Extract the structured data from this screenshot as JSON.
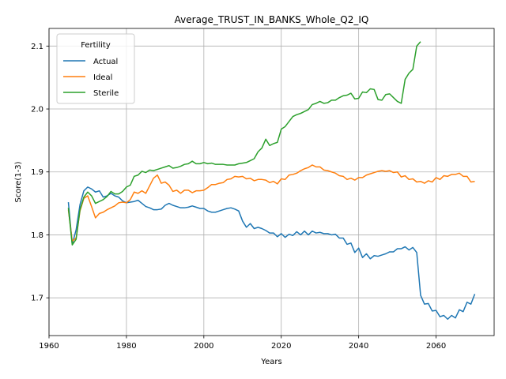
{
  "chart_data": {
    "type": "line",
    "title": "Average_TRUST_IN_BANKS_Whole_Q2_IQ",
    "xlabel": "Years",
    "ylabel": "Score(1-3)",
    "xlim": [
      1960,
      2075
    ],
    "ylim": [
      1.64,
      2.128
    ],
    "x_ticks": [
      1960,
      1980,
      2000,
      2020,
      2040,
      2060
    ],
    "y_ticks": [
      1.7,
      1.8,
      1.9,
      2.0,
      2.1
    ],
    "grid": true,
    "legend": {
      "title": "Fertility",
      "position": "top-left"
    },
    "series": [
      {
        "name": "Actual",
        "color": "#1f77b4",
        "points": [
          [
            1965,
            1.852
          ],
          [
            1966,
            1.785
          ],
          [
            1967,
            1.808
          ],
          [
            1968,
            1.848
          ],
          [
            1969,
            1.87
          ],
          [
            1970,
            1.876
          ],
          [
            1971,
            1.873
          ],
          [
            1972,
            1.868
          ],
          [
            1973,
            1.87
          ],
          [
            1974,
            1.86
          ],
          [
            1975,
            1.862
          ],
          [
            1976,
            1.866
          ],
          [
            1977,
            1.862
          ],
          [
            1978,
            1.86
          ],
          [
            1979,
            1.854
          ],
          [
            1980,
            1.851
          ],
          [
            1981,
            1.852
          ],
          [
            1982,
            1.853
          ],
          [
            1983,
            1.855
          ],
          [
            1984,
            1.85
          ],
          [
            1985,
            1.845
          ],
          [
            1986,
            1.843
          ],
          [
            1987,
            1.84
          ],
          [
            1988,
            1.84
          ],
          [
            1989,
            1.841
          ],
          [
            1990,
            1.847
          ],
          [
            1991,
            1.85
          ],
          [
            1992,
            1.847
          ],
          [
            1993,
            1.845
          ],
          [
            1994,
            1.843
          ],
          [
            1995,
            1.843
          ],
          [
            1996,
            1.844
          ],
          [
            1997,
            1.846
          ],
          [
            1998,
            1.844
          ],
          [
            1999,
            1.842
          ],
          [
            2000,
            1.842
          ],
          [
            2001,
            1.838
          ],
          [
            2002,
            1.836
          ],
          [
            2003,
            1.836
          ],
          [
            2004,
            1.838
          ],
          [
            2005,
            1.84
          ],
          [
            2006,
            1.842
          ],
          [
            2007,
            1.843
          ],
          [
            2008,
            1.841
          ],
          [
            2009,
            1.838
          ],
          [
            2010,
            1.822
          ],
          [
            2011,
            1.812
          ],
          [
            2012,
            1.818
          ],
          [
            2013,
            1.81
          ],
          [
            2014,
            1.812
          ],
          [
            2015,
            1.81
          ],
          [
            2016,
            1.807
          ],
          [
            2017,
            1.803
          ],
          [
            2018,
            1.803
          ],
          [
            2019,
            1.797
          ],
          [
            2020,
            1.802
          ],
          [
            2021,
            1.796
          ],
          [
            2022,
            1.801
          ],
          [
            2023,
            1.799
          ],
          [
            2024,
            1.805
          ],
          [
            2025,
            1.8
          ],
          [
            2026,
            1.806
          ],
          [
            2027,
            1.8
          ],
          [
            2028,
            1.806
          ],
          [
            2029,
            1.803
          ],
          [
            2030,
            1.804
          ],
          [
            2031,
            1.802
          ],
          [
            2032,
            1.802
          ],
          [
            2033,
            1.8
          ],
          [
            2034,
            1.801
          ],
          [
            2035,
            1.795
          ],
          [
            2036,
            1.795
          ],
          [
            2037,
            1.785
          ],
          [
            2038,
            1.787
          ],
          [
            2039,
            1.772
          ],
          [
            2040,
            1.779
          ],
          [
            2041,
            1.764
          ],
          [
            2042,
            1.77
          ],
          [
            2043,
            1.762
          ],
          [
            2044,
            1.767
          ],
          [
            2045,
            1.766
          ],
          [
            2046,
            1.768
          ],
          [
            2047,
            1.77
          ],
          [
            2048,
            1.773
          ],
          [
            2049,
            1.773
          ],
          [
            2050,
            1.778
          ],
          [
            2051,
            1.778
          ],
          [
            2052,
            1.781
          ],
          [
            2053,
            1.776
          ],
          [
            2054,
            1.78
          ],
          [
            2055,
            1.772
          ],
          [
            2056,
            1.704
          ],
          [
            2057,
            1.69
          ],
          [
            2058,
            1.691
          ],
          [
            2059,
            1.679
          ],
          [
            2060,
            1.68
          ],
          [
            2061,
            1.67
          ],
          [
            2062,
            1.672
          ],
          [
            2063,
            1.666
          ],
          [
            2064,
            1.672
          ],
          [
            2065,
            1.668
          ],
          [
            2066,
            1.681
          ],
          [
            2067,
            1.678
          ],
          [
            2068,
            1.693
          ],
          [
            2069,
            1.69
          ],
          [
            2070,
            1.706
          ]
        ]
      },
      {
        "name": "Ideal",
        "color": "#ff7f0e",
        "points": [
          [
            1965,
            1.84
          ],
          [
            1966,
            1.79
          ],
          [
            1967,
            1.795
          ],
          [
            1968,
            1.838
          ],
          [
            1969,
            1.858
          ],
          [
            1970,
            1.862
          ],
          [
            1971,
            1.845
          ],
          [
            1972,
            1.827
          ],
          [
            1973,
            1.834
          ],
          [
            1974,
            1.836
          ],
          [
            1975,
            1.84
          ],
          [
            1976,
            1.843
          ],
          [
            1977,
            1.846
          ],
          [
            1978,
            1.851
          ],
          [
            1979,
            1.852
          ],
          [
            1980,
            1.851
          ],
          [
            1981,
            1.856
          ],
          [
            1982,
            1.868
          ],
          [
            1983,
            1.866
          ],
          [
            1984,
            1.87
          ],
          [
            1985,
            1.866
          ],
          [
            1986,
            1.878
          ],
          [
            1987,
            1.89
          ],
          [
            1988,
            1.895
          ],
          [
            1989,
            1.882
          ],
          [
            1990,
            1.884
          ],
          [
            1991,
            1.879
          ],
          [
            1992,
            1.869
          ],
          [
            1993,
            1.871
          ],
          [
            1994,
            1.866
          ],
          [
            1995,
            1.871
          ],
          [
            1996,
            1.871
          ],
          [
            1997,
            1.867
          ],
          [
            1998,
            1.87
          ],
          [
            1999,
            1.87
          ],
          [
            2000,
            1.871
          ],
          [
            2001,
            1.875
          ],
          [
            2002,
            1.88
          ],
          [
            2003,
            1.88
          ],
          [
            2004,
            1.882
          ],
          [
            2005,
            1.883
          ],
          [
            2006,
            1.888
          ],
          [
            2007,
            1.889
          ],
          [
            2008,
            1.893
          ],
          [
            2009,
            1.892
          ],
          [
            2010,
            1.893
          ],
          [
            2011,
            1.889
          ],
          [
            2012,
            1.89
          ],
          [
            2013,
            1.886
          ],
          [
            2014,
            1.888
          ],
          [
            2015,
            1.888
          ],
          [
            2016,
            1.887
          ],
          [
            2017,
            1.883
          ],
          [
            2018,
            1.885
          ],
          [
            2019,
            1.881
          ],
          [
            2020,
            1.889
          ],
          [
            2021,
            1.888
          ],
          [
            2022,
            1.895
          ],
          [
            2023,
            1.896
          ],
          [
            2024,
            1.898
          ],
          [
            2025,
            1.902
          ],
          [
            2026,
            1.905
          ],
          [
            2027,
            1.907
          ],
          [
            2028,
            1.911
          ],
          [
            2029,
            1.908
          ],
          [
            2030,
            1.908
          ],
          [
            2031,
            1.903
          ],
          [
            2032,
            1.902
          ],
          [
            2033,
            1.9
          ],
          [
            2034,
            1.898
          ],
          [
            2035,
            1.894
          ],
          [
            2036,
            1.893
          ],
          [
            2037,
            1.888
          ],
          [
            2038,
            1.89
          ],
          [
            2039,
            1.887
          ],
          [
            2040,
            1.891
          ],
          [
            2041,
            1.891
          ],
          [
            2042,
            1.895
          ],
          [
            2043,
            1.897
          ],
          [
            2044,
            1.899
          ],
          [
            2045,
            1.901
          ],
          [
            2046,
            1.902
          ],
          [
            2047,
            1.901
          ],
          [
            2048,
            1.902
          ],
          [
            2049,
            1.899
          ],
          [
            2050,
            1.9
          ],
          [
            2051,
            1.892
          ],
          [
            2052,
            1.894
          ],
          [
            2053,
            1.888
          ],
          [
            2054,
            1.889
          ],
          [
            2055,
            1.884
          ],
          [
            2056,
            1.885
          ],
          [
            2057,
            1.882
          ],
          [
            2058,
            1.886
          ],
          [
            2059,
            1.884
          ],
          [
            2060,
            1.891
          ],
          [
            2061,
            1.888
          ],
          [
            2062,
            1.894
          ],
          [
            2063,
            1.893
          ],
          [
            2064,
            1.896
          ],
          [
            2065,
            1.896
          ],
          [
            2066,
            1.898
          ],
          [
            2067,
            1.893
          ],
          [
            2068,
            1.893
          ],
          [
            2069,
            1.884
          ],
          [
            2070,
            1.885
          ]
        ]
      },
      {
        "name": "Sterile",
        "color": "#2ca02c",
        "points": [
          [
            1965,
            1.843
          ],
          [
            1966,
            1.784
          ],
          [
            1967,
            1.793
          ],
          [
            1968,
            1.84
          ],
          [
            1969,
            1.86
          ],
          [
            1970,
            1.868
          ],
          [
            1971,
            1.862
          ],
          [
            1972,
            1.85
          ],
          [
            1973,
            1.853
          ],
          [
            1974,
            1.856
          ],
          [
            1975,
            1.861
          ],
          [
            1976,
            1.869
          ],
          [
            1977,
            1.865
          ],
          [
            1978,
            1.865
          ],
          [
            1979,
            1.869
          ],
          [
            1980,
            1.876
          ],
          [
            1981,
            1.879
          ],
          [
            1982,
            1.893
          ],
          [
            1983,
            1.895
          ],
          [
            1984,
            1.901
          ],
          [
            1985,
            1.899
          ],
          [
            1986,
            1.903
          ],
          [
            1987,
            1.902
          ],
          [
            1988,
            1.904
          ],
          [
            1989,
            1.906
          ],
          [
            1990,
            1.908
          ],
          [
            1991,
            1.91
          ],
          [
            1992,
            1.906
          ],
          [
            1993,
            1.907
          ],
          [
            1994,
            1.909
          ],
          [
            1995,
            1.912
          ],
          [
            1996,
            1.913
          ],
          [
            1997,
            1.917
          ],
          [
            1998,
            1.913
          ],
          [
            1999,
            1.913
          ],
          [
            2000,
            1.915
          ],
          [
            2001,
            1.913
          ],
          [
            2002,
            1.914
          ],
          [
            2003,
            1.912
          ],
          [
            2004,
            1.912
          ],
          [
            2005,
            1.912
          ],
          [
            2006,
            1.911
          ],
          [
            2007,
            1.911
          ],
          [
            2008,
            1.911
          ],
          [
            2009,
            1.913
          ],
          [
            2010,
            1.914
          ],
          [
            2011,
            1.915
          ],
          [
            2012,
            1.918
          ],
          [
            2013,
            1.921
          ],
          [
            2014,
            1.932
          ],
          [
            2015,
            1.938
          ],
          [
            2016,
            1.952
          ],
          [
            2017,
            1.942
          ],
          [
            2018,
            1.945
          ],
          [
            2019,
            1.947
          ],
          [
            2020,
            1.968
          ],
          [
            2021,
            1.972
          ],
          [
            2022,
            1.98
          ],
          [
            2023,
            1.988
          ],
          [
            2024,
            1.991
          ],
          [
            2025,
            1.993
          ],
          [
            2026,
            1.996
          ],
          [
            2027,
            1.999
          ],
          [
            2028,
            2.007
          ],
          [
            2029,
            2.009
          ],
          [
            2030,
            2.012
          ],
          [
            2031,
            2.009
          ],
          [
            2032,
            2.01
          ],
          [
            2033,
            2.014
          ],
          [
            2034,
            2.014
          ],
          [
            2035,
            2.018
          ],
          [
            2036,
            2.021
          ],
          [
            2037,
            2.022
          ],
          [
            2038,
            2.025
          ],
          [
            2039,
            2.016
          ],
          [
            2040,
            2.017
          ],
          [
            2041,
            2.027
          ],
          [
            2042,
            2.026
          ],
          [
            2043,
            2.032
          ],
          [
            2044,
            2.031
          ],
          [
            2045,
            2.015
          ],
          [
            2046,
            2.014
          ],
          [
            2047,
            2.023
          ],
          [
            2048,
            2.024
          ],
          [
            2049,
            2.018
          ],
          [
            2050,
            2.012
          ],
          [
            2051,
            2.009
          ],
          [
            2052,
            2.047
          ],
          [
            2053,
            2.057
          ],
          [
            2054,
            2.063
          ],
          [
            2055,
            2.1
          ],
          [
            2056,
            2.107
          ]
        ]
      }
    ]
  }
}
